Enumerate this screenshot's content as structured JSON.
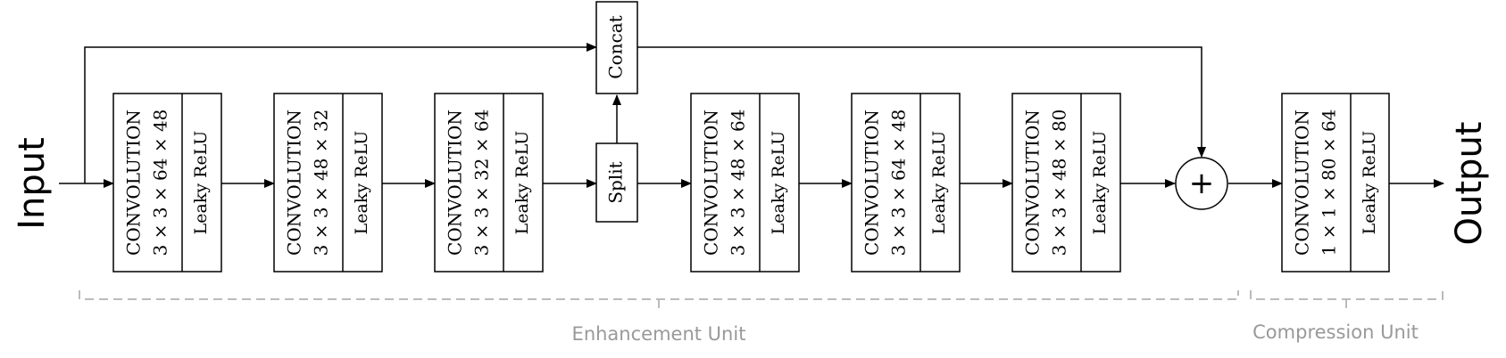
{
  "diagram": {
    "input_label": "Input",
    "output_label": "Output",
    "concat_label": "Concat",
    "split_label": "Split",
    "add_symbol": "+",
    "activation_label": "Leaky ReLU",
    "blocks": [
      {
        "line1": "CONVOLUTION",
        "line2": "3 × 3 × 64 × 48"
      },
      {
        "line1": "CONVOLUTION",
        "line2": "3 × 3 × 48 × 32"
      },
      {
        "line1": "CONVOLUTION",
        "line2": "3 × 3 × 32 × 64"
      },
      {
        "line1": "CONVOLUTION",
        "line2": "3 × 3 × 48 × 64"
      },
      {
        "line1": "CONVOLUTION",
        "line2": "3 × 3 × 64 × 48"
      },
      {
        "line1": "CONVOLUTION",
        "line2": "3 × 3 × 48 × 80"
      },
      {
        "line1": "CONVOLUTION",
        "line2": "1 × 1 × 80 × 64"
      }
    ],
    "enhancement_unit_label": "Enhancement Unit",
    "compression_unit_label": "Compression Unit",
    "colors": {
      "stroke": "#000000",
      "bracket": "#bbbbbb",
      "unit_label": "#999999"
    }
  }
}
